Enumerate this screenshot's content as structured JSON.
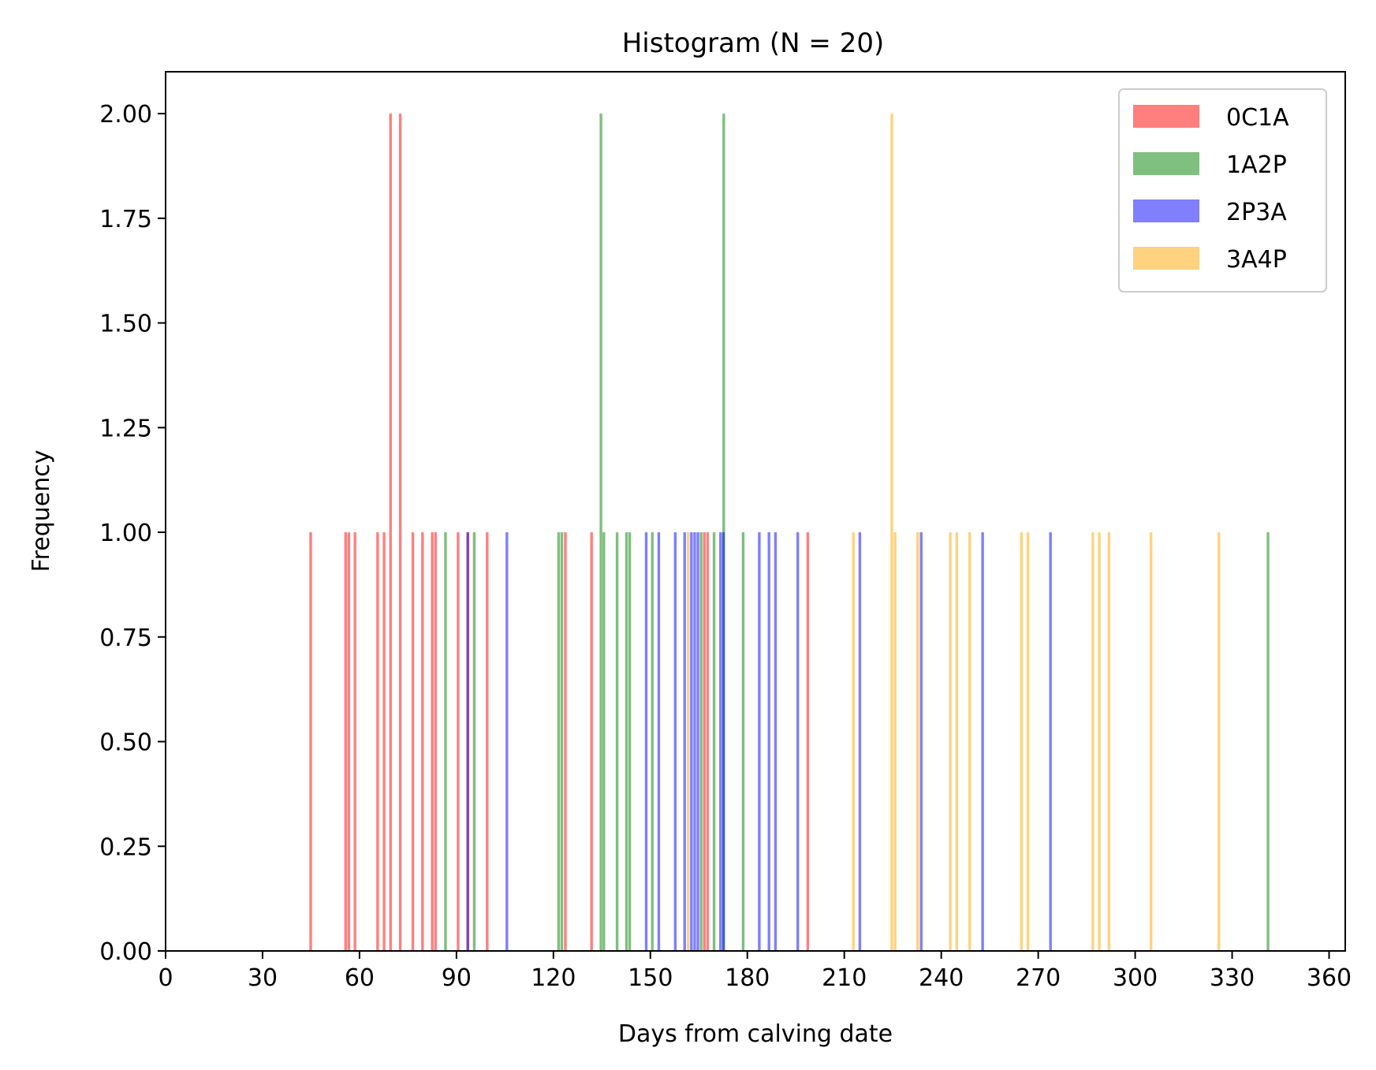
{
  "chart_data": {
    "type": "bar",
    "title": "Histogram (N = 20)",
    "xlabel": "Days from calving date",
    "ylabel": "Frequency",
    "xlim": [
      0,
      365
    ],
    "ylim": [
      0,
      2.1
    ],
    "xticks": [
      0,
      30,
      60,
      90,
      120,
      150,
      180,
      210,
      240,
      270,
      300,
      330,
      360
    ],
    "xtick_labels": [
      "0",
      "30",
      "60",
      "90",
      "120",
      "150",
      "180",
      "210",
      "240",
      "270",
      "300",
      "330",
      "360"
    ],
    "yticks": [
      0,
      0.25,
      0.5,
      0.75,
      1.0,
      1.25,
      1.5,
      1.75,
      2.0
    ],
    "ytick_labels": [
      "0.00",
      "0.25",
      "0.50",
      "0.75",
      "1.00",
      "1.25",
      "1.50",
      "1.75",
      "2.00"
    ],
    "grid": false,
    "legend_position": "top-right",
    "series": [
      {
        "name": "0C1A",
        "color": "#ff0000",
        "alpha": 0.5,
        "bars": [
          {
            "x": 44.9,
            "count": 1
          },
          {
            "x": 55.7,
            "count": 1
          },
          {
            "x": 56.7,
            "count": 1
          },
          {
            "x": 58.6,
            "count": 1
          },
          {
            "x": 65.6,
            "count": 1
          },
          {
            "x": 67.6,
            "count": 1
          },
          {
            "x": 69.6,
            "count": 2
          },
          {
            "x": 72.6,
            "count": 2
          },
          {
            "x": 76.5,
            "count": 1
          },
          {
            "x": 79.5,
            "count": 1
          },
          {
            "x": 82.5,
            "count": 1
          },
          {
            "x": 83.5,
            "count": 1
          },
          {
            "x": 90.5,
            "count": 1
          },
          {
            "x": 93.5,
            "count": 1
          },
          {
            "x": 99.5,
            "count": 1
          },
          {
            "x": 123.7,
            "count": 1
          },
          {
            "x": 131.8,
            "count": 1
          },
          {
            "x": 166.7,
            "count": 1
          },
          {
            "x": 167.7,
            "count": 1
          },
          {
            "x": 198.7,
            "count": 1
          }
        ]
      },
      {
        "name": "1A2P",
        "color": "#008000",
        "alpha": 0.5,
        "bars": [
          {
            "x": 86.6,
            "count": 1
          },
          {
            "x": 95.5,
            "count": 1
          },
          {
            "x": 121.6,
            "count": 1
          },
          {
            "x": 122.6,
            "count": 1
          },
          {
            "x": 134.7,
            "count": 2
          },
          {
            "x": 135.6,
            "count": 1
          },
          {
            "x": 139.7,
            "count": 1
          },
          {
            "x": 142.6,
            "count": 1
          },
          {
            "x": 143.6,
            "count": 1
          },
          {
            "x": 150.6,
            "count": 1
          },
          {
            "x": 165.7,
            "count": 1
          },
          {
            "x": 169.7,
            "count": 1
          },
          {
            "x": 172.7,
            "count": 2
          },
          {
            "x": 178.7,
            "count": 1
          },
          {
            "x": 341.1,
            "count": 1
          }
        ]
      },
      {
        "name": "2P3A",
        "color": "#0000ff",
        "alpha": 0.5,
        "bars": [
          {
            "x": 93.5,
            "count": 1
          },
          {
            "x": 105.6,
            "count": 1
          },
          {
            "x": 148.7,
            "count": 1
          },
          {
            "x": 152.6,
            "count": 1
          },
          {
            "x": 157.7,
            "count": 1
          },
          {
            "x": 160.6,
            "count": 1
          },
          {
            "x": 162.7,
            "count": 1
          },
          {
            "x": 163.7,
            "count": 1
          },
          {
            "x": 164.7,
            "count": 1
          },
          {
            "x": 171.7,
            "count": 1
          },
          {
            "x": 172.6,
            "count": 1
          },
          {
            "x": 183.7,
            "count": 1
          },
          {
            "x": 186.7,
            "count": 1
          },
          {
            "x": 188.7,
            "count": 1
          },
          {
            "x": 195.6,
            "count": 1
          },
          {
            "x": 214.8,
            "count": 1
          },
          {
            "x": 233.8,
            "count": 1
          },
          {
            "x": 252.8,
            "count": 1
          },
          {
            "x": 273.8,
            "count": 1
          }
        ]
      },
      {
        "name": "3A4P",
        "color": "#ffa500",
        "alpha": 0.5,
        "bars": [
          {
            "x": 161.7,
            "count": 1
          },
          {
            "x": 212.8,
            "count": 1
          },
          {
            "x": 224.7,
            "count": 2
          },
          {
            "x": 225.7,
            "count": 1
          },
          {
            "x": 232.7,
            "count": 1
          },
          {
            "x": 242.8,
            "count": 1
          },
          {
            "x": 244.8,
            "count": 1
          },
          {
            "x": 248.8,
            "count": 1
          },
          {
            "x": 264.8,
            "count": 1
          },
          {
            "x": 266.8,
            "count": 1
          },
          {
            "x": 286.9,
            "count": 1
          },
          {
            "x": 288.9,
            "count": 1
          },
          {
            "x": 291.9,
            "count": 1
          },
          {
            "x": 304.9,
            "count": 1
          },
          {
            "x": 325.9,
            "count": 1
          }
        ]
      }
    ]
  }
}
